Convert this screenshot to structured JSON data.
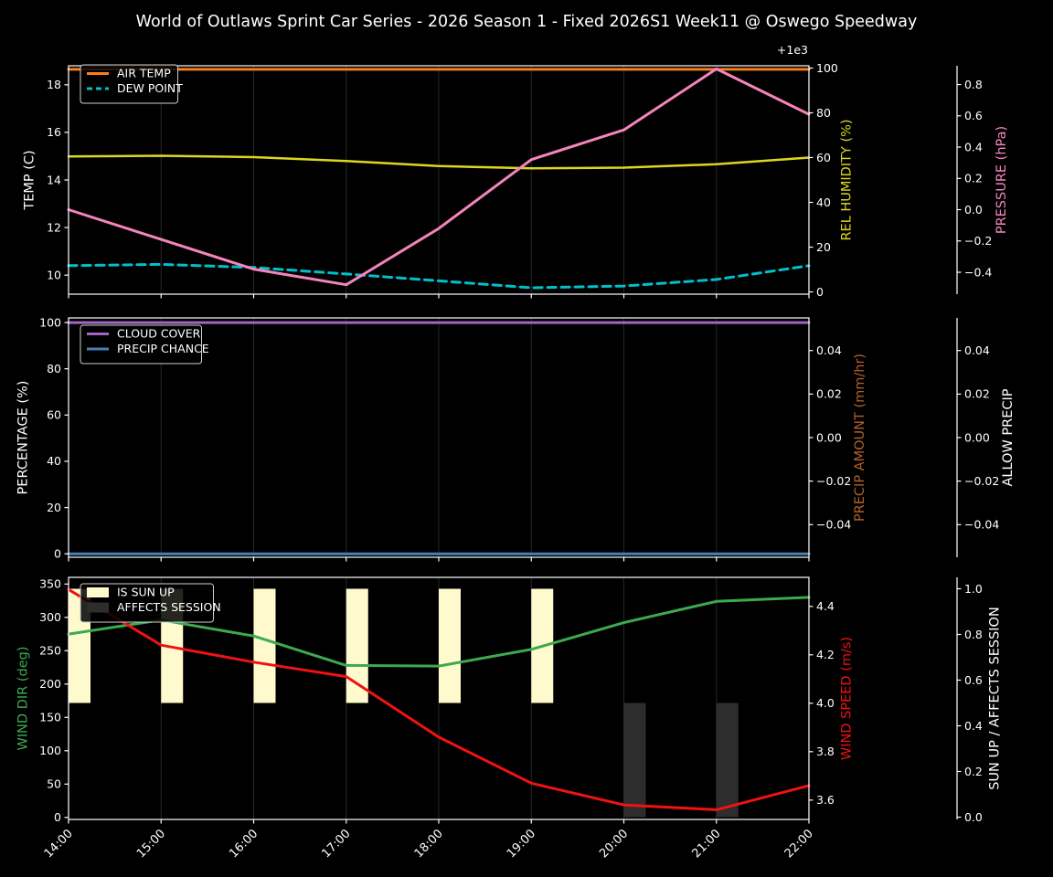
{
  "title": "World of Outlaws Sprint Car Series - 2026 Season 1 - Fixed 2026S1 Week11 @ Oswego Speedway",
  "colors": {
    "background": "#000000",
    "text": "#ffffff",
    "grid": "#262626",
    "spine": "#ffffff",
    "legend_border": "#cfcfcf"
  },
  "chart_data": {
    "type": "line",
    "x_labels": [
      "14:00",
      "15:00",
      "16:00",
      "17:00",
      "18:00",
      "19:00",
      "20:00",
      "21:00",
      "22:00"
    ],
    "panels": [
      {
        "name": "temp humidity pressure",
        "left_axis": {
          "label": "TEMP (C)",
          "color": "#ffffff",
          "range": [
            9.2,
            18.8
          ],
          "ticks": [
            10,
            12,
            14,
            16,
            18
          ],
          "tick_labels": [
            "10",
            "12",
            "14",
            "16",
            "18"
          ]
        },
        "right_axis_1": {
          "label": "REL HUMIDITY (%)",
          "color": "#dcd71e",
          "range": [
            -1,
            101
          ],
          "ticks": [
            0,
            20,
            40,
            60,
            80,
            100
          ],
          "tick_labels": [
            "0",
            "20",
            "40",
            "60",
            "80",
            "100"
          ]
        },
        "right_axis_2": {
          "label": "PRESSURE (hPa)",
          "color": "#f584bd",
          "range": [
            999.46,
            1000.92
          ],
          "offset_text": "+1e3",
          "ticks": [
            999.6,
            999.8,
            1000.0,
            1000.2,
            1000.4,
            1000.6,
            1000.8
          ],
          "tick_labels": [
            "−0.4",
            "−0.2",
            "0.0",
            "0.2",
            "0.4",
            "0.6",
            "0.8"
          ]
        },
        "series": [
          {
            "name": "AIR TEMP",
            "axis": "left_axis",
            "color": "#fc7d1c",
            "width": 3,
            "values": [
              18.65,
              18.65,
              18.65,
              18.65,
              18.65,
              18.65,
              18.65,
              18.65,
              18.65
            ]
          },
          {
            "name": "DEW POINT",
            "axis": "left_axis",
            "color": "#00c1cb",
            "width": 3,
            "dash": "9 6",
            "values": [
              10.4,
              10.45,
              10.32,
              10.05,
              9.76,
              9.47,
              9.54,
              9.82,
              10.4
            ]
          },
          {
            "name": "REL HUMIDITY",
            "axis": "right_axis_1",
            "color": "#dcd71e",
            "width": 2.5,
            "values": [
              60.5,
              60.8,
              60.2,
              58.5,
              56.2,
              55.2,
              55.5,
              57.0,
              60.0
            ]
          },
          {
            "name": "PRESSURE",
            "axis": "right_axis_2",
            "color": "#f584bd",
            "width": 3,
            "values": [
              1000.0,
              999.81,
              999.62,
              999.52,
              999.88,
              1000.32,
              1000.51,
              1000.9,
              1000.61
            ]
          }
        ],
        "legend": [
          {
            "swatch": "line",
            "color": "#fc7d1c",
            "label": "AIR TEMP"
          },
          {
            "swatch": "line",
            "color": "#00c1cb",
            "dash": "6 4",
            "label": "DEW POINT"
          }
        ]
      },
      {
        "name": "cloud and precip",
        "left_axis": {
          "label": "PERCENTAGE (%)",
          "color": "#ffffff",
          "range": [
            -1.5,
            102
          ],
          "ticks": [
            0,
            20,
            40,
            60,
            80,
            100
          ],
          "tick_labels": [
            "0",
            "20",
            "40",
            "60",
            "80",
            "100"
          ]
        },
        "right_axis_1": {
          "label": "PRECIP AMOUNT (mm/hr)",
          "color": "#b4612c",
          "range": [
            -0.055,
            0.055
          ],
          "ticks": [
            -0.04,
            -0.02,
            0.0,
            0.02,
            0.04
          ],
          "tick_labels": [
            "−0.04",
            "−0.02",
            "0.00",
            "0.02",
            "0.04"
          ]
        },
        "right_axis_2": {
          "label": "ALLOW PRECIP",
          "color": "#ffffff",
          "range": [
            -0.055,
            0.055
          ],
          "ticks": [
            -0.04,
            -0.02,
            0.0,
            0.02,
            0.04
          ],
          "tick_labels": [
            "−0.04",
            "−0.02",
            "0.00",
            "0.02",
            "0.04"
          ]
        },
        "series": [
          {
            "name": "CLOUD COVER",
            "axis": "left_axis",
            "color": "#a266c4",
            "width": 3,
            "values": [
              100,
              100,
              100,
              100,
              100,
              100,
              100,
              100,
              100
            ]
          },
          {
            "name": "PRECIP CHANCE",
            "axis": "left_axis",
            "color": "#4682b4",
            "width": 3,
            "values": [
              0,
              0,
              0,
              0,
              0,
              0,
              0,
              0,
              0
            ]
          }
        ],
        "legend": [
          {
            "swatch": "line",
            "color": "#a266c4",
            "label": "CLOUD COVER"
          },
          {
            "swatch": "line",
            "color": "#4682b4",
            "label": "PRECIP CHANCE"
          }
        ]
      },
      {
        "name": "wind and sun",
        "left_axis": {
          "label": "WIND DIR (deg)",
          "color": "#3daa4f",
          "range": [
            -3,
            360
          ],
          "ticks": [
            0,
            50,
            100,
            150,
            200,
            250,
            300,
            350
          ],
          "tick_labels": [
            "0",
            "50",
            "100",
            "150",
            "200",
            "250",
            "300",
            "350"
          ]
        },
        "right_axis_1": {
          "label": "WIND SPEED (m/s)",
          "color": "#ee1312",
          "range": [
            3.52,
            4.52
          ],
          "ticks": [
            3.6,
            3.8,
            4.0,
            4.2,
            4.4
          ],
          "tick_labels": [
            "3.6",
            "3.8",
            "4.0",
            "4.2",
            "4.4"
          ]
        },
        "right_axis_2": {
          "label": "SUN UP / AFFECTS SESSION",
          "color": "#ffffff",
          "range": [
            -0.01,
            1.05
          ],
          "ticks": [
            0.0,
            0.2,
            0.4,
            0.6,
            0.8,
            1.0
          ],
          "tick_labels": [
            "0.0",
            "0.2",
            "0.4",
            "0.6",
            "0.8",
            "1.0"
          ]
        },
        "bars": [
          {
            "name": "IS SUN UP",
            "axis": "right_axis_2",
            "color": "#fffacd",
            "span": [
              0.5,
              1.0
            ],
            "hours": [
              "14:00",
              "15:00",
              "16:00",
              "17:00",
              "18:00",
              "19:00"
            ]
          },
          {
            "name": "AFFECTS SESSION",
            "axis": "right_axis_2",
            "color": "#2d2d2d",
            "span": [
              0.0,
              0.5
            ],
            "hours": [
              "20:00",
              "21:00"
            ]
          }
        ],
        "series": [
          {
            "name": "WIND DIR",
            "axis": "left_axis",
            "color": "#3daa4f",
            "width": 3,
            "values": [
              275,
              296,
              272,
              228,
              227,
              252,
              292,
              324,
              330
            ]
          },
          {
            "name": "WIND SPEED",
            "axis": "right_axis_1",
            "color": "#ee1312",
            "width": 3,
            "values": [
              4.47,
              4.24,
              4.17,
              4.11,
              3.86,
              3.67,
              3.58,
              3.56,
              3.66
            ]
          }
        ],
        "legend": [
          {
            "swatch": "patch",
            "color": "#fffacd",
            "label": "IS SUN UP"
          },
          {
            "swatch": "patch",
            "color": "#2d2d2d",
            "label": "AFFECTS SESSION"
          }
        ]
      }
    ]
  }
}
